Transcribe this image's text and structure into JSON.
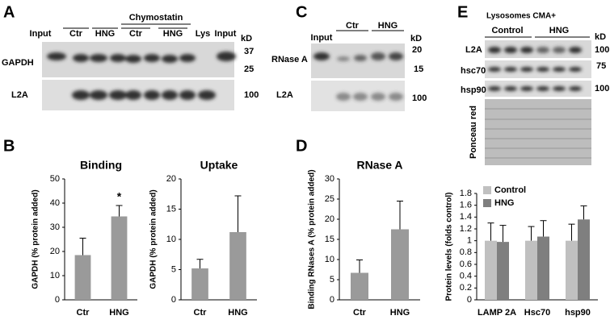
{
  "panels": {
    "a": "A",
    "b": "B",
    "c": "C",
    "d": "D",
    "e": "E"
  },
  "blots": {
    "a": {
      "lanes": [
        "Input",
        "Ctr",
        "HNG",
        "Ctr",
        "HNG",
        "Lys",
        "Input"
      ],
      "group": "Chymostatin",
      "kd": "kD",
      "markers": [
        "37",
        "25",
        "100"
      ],
      "rows": [
        "GAPDH",
        "L2A"
      ]
    },
    "c": {
      "lanes": [
        "Input",
        "Ctr",
        "HNG"
      ],
      "kd": "kD",
      "markers": [
        "20",
        "15",
        "100"
      ],
      "rows": [
        "RNase A",
        "L2A"
      ]
    },
    "e": {
      "title": "Lysosomes CMA+",
      "groups": [
        "Control",
        "HNG"
      ],
      "kd": "kD",
      "markers": [
        "100",
        "75",
        "100"
      ],
      "rows": [
        "L2A",
        "hsc70",
        "hsp90",
        "Ponceau red"
      ]
    }
  },
  "chart_data": [
    {
      "type": "bar",
      "title": "Binding",
      "y_label": "GAPDH (% protein added)",
      "categories": [
        "Ctr",
        "HNG"
      ],
      "values": [
        18.5,
        34.5
      ],
      "errors": [
        7,
        4.5
      ],
      "color": "#9a9a9a",
      "ylim": [
        0,
        50
      ],
      "yticks": [
        0,
        10,
        20,
        30,
        40,
        50
      ],
      "annotation": "*"
    },
    {
      "type": "bar",
      "title": "Uptake",
      "y_label": "GAPDH (% protein added)",
      "categories": [
        "Ctr",
        "HNG"
      ],
      "values": [
        5.2,
        11.2
      ],
      "errors": [
        1.5,
        6
      ],
      "color": "#9a9a9a",
      "ylim": [
        0,
        20
      ],
      "yticks": [
        0,
        5,
        10,
        15,
        20
      ]
    },
    {
      "type": "bar",
      "title": "RNase A",
      "y_label": "Binding RNases A (% protein added)",
      "categories": [
        "Ctr",
        "HNG"
      ],
      "values": [
        6.7,
        17.5
      ],
      "errors": [
        3.2,
        7
      ],
      "color": "#9a9a9a",
      "ylim": [
        0,
        30
      ],
      "yticks": [
        0,
        5,
        10,
        15,
        20,
        25,
        30
      ]
    },
    {
      "type": "bar",
      "y_label": "Protein levels (folds control)",
      "categories": [
        "LAMP 2A",
        "Hsc70",
        "hsp90"
      ],
      "series": [
        {
          "name": "Control",
          "color": "#c0c0c0",
          "values": [
            1,
            1,
            1
          ],
          "errors": [
            0.3,
            0.24,
            0.28
          ]
        },
        {
          "name": "HNG",
          "color": "#7f7f7f",
          "values": [
            0.98,
            1.07,
            1.36
          ],
          "errors": [
            0.28,
            0.27,
            0.23
          ]
        }
      ],
      "legend": "upper left",
      "ylim": [
        0,
        1.8
      ],
      "yticks": [
        0,
        0.2,
        0.4,
        0.6,
        0.8,
        1,
        1.2,
        1.4,
        1.6,
        1.8
      ]
    }
  ]
}
